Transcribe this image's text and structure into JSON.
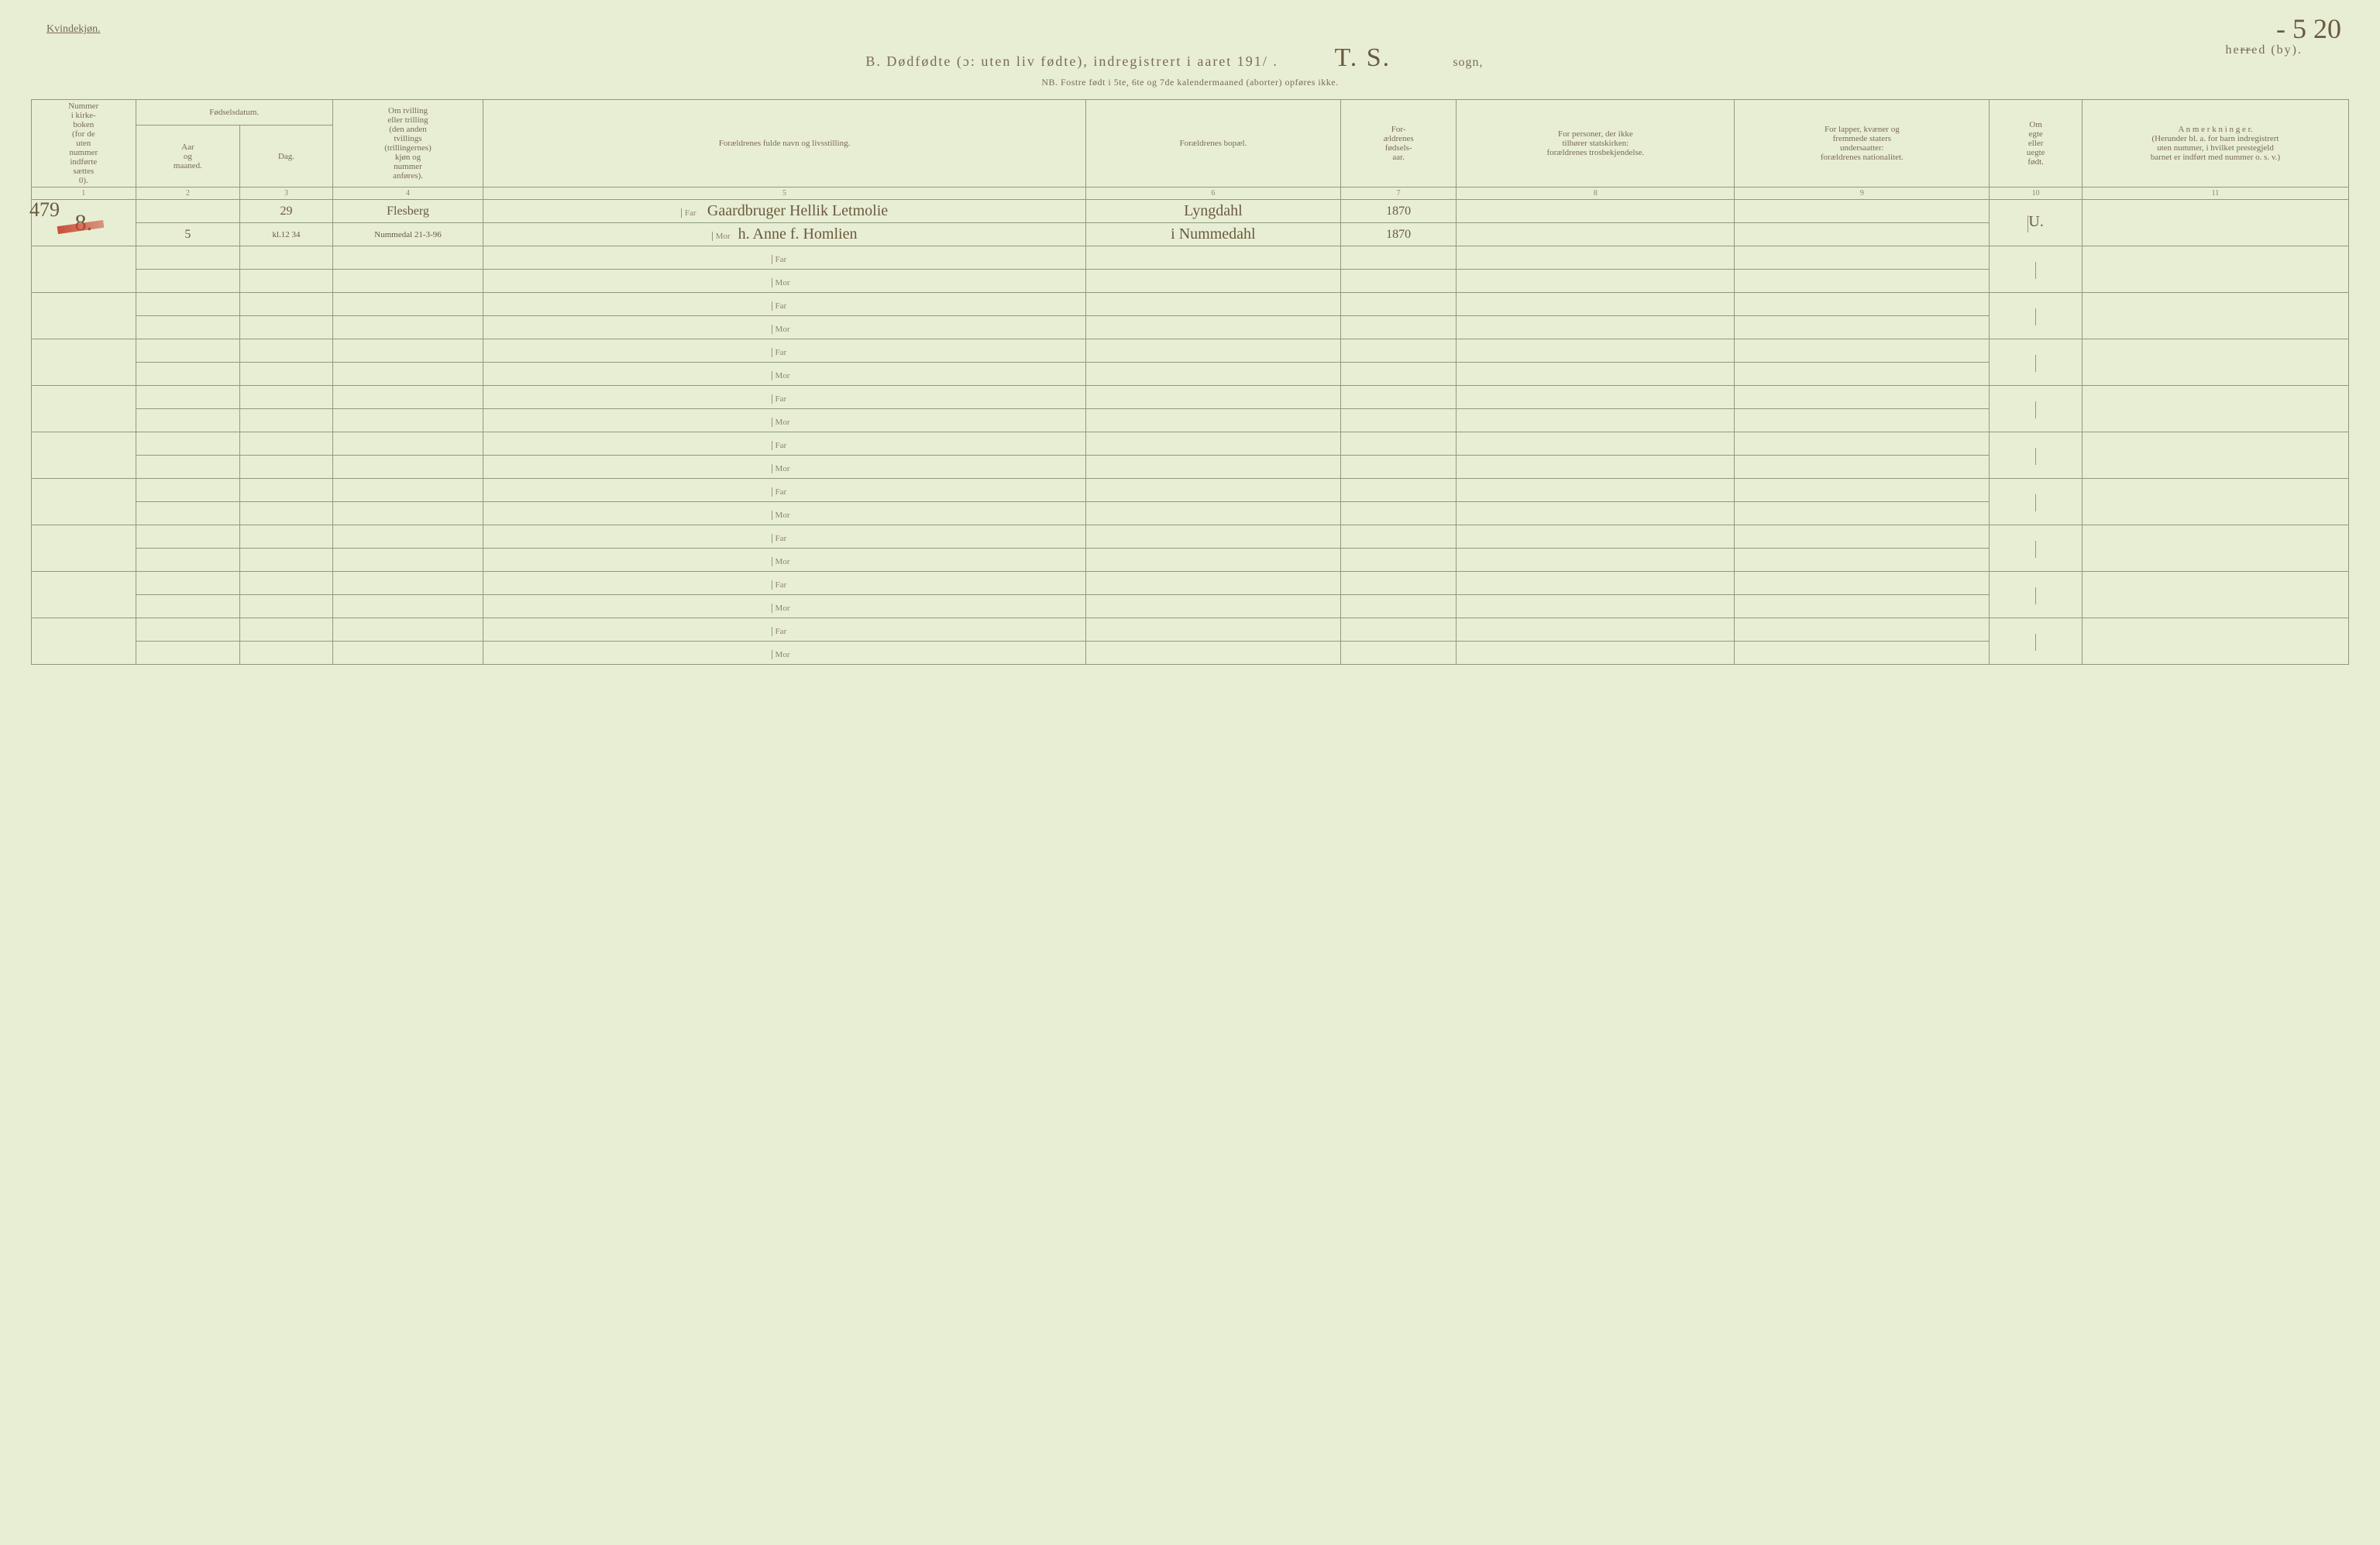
{
  "header": {
    "gender_label": "Kvindekjøn.",
    "title_prefix": "B.  Dødfødte (ɔ: uten liv fødte), indregistrert i aaret 191",
    "title_year_slash": "/ .",
    "sogn_hand": "T. S.",
    "sogn_word": "sogn,",
    "herred_label_pre": "he",
    "herred_strike": "rr",
    "herred_label_post": "ed (by).",
    "corner_hand": "- 5 20",
    "subtitle": "NB.  Fostre født i 5te, 6te og 7de kalendermaaned (aborter) opføres ikke."
  },
  "columns": {
    "c1": "Nummer\ni kirke-\nboken\n(for de\nuten\nnummer\nindførte\nsættes\n0).",
    "c2_top": "Fødselsdatum.",
    "c2a": "Aar\nog\nmaaned.",
    "c2b": "Dag.",
    "c4": "Om tvilling\neller trilling\n(den anden\ntvillings\n(trillingernes)\nkjøn og\nnummer\nanføres).",
    "c5": "Forældrenes fulde navn og livsstilling.",
    "c6": "Forældrenes bopæl.",
    "c7": "For-\nældrenes\nfødsels-\naar.",
    "c8": "For personer, der ikke\ntilhører statskirken:\nforældrenes trosbekjendelse.",
    "c9": "For lapper, kvæner og\nfremmede staters\nundersaatter:\nforældrenes nationalitet.",
    "c10": "Om\negte\neller\nuegte\nfødt.",
    "c11": "A n m e r k n i n g e r.\n(Herunder bl. a. for barn indregistrert\nuten nummer, i hvilket prestegjeld\nbarnet er indført med nummer o. s. v.)",
    "nums": [
      "1",
      "2",
      "3",
      "4",
      "5",
      "6",
      "7",
      "8",
      "9",
      "10",
      "11"
    ]
  },
  "labels": {
    "far": "Far",
    "mor": "Mor"
  },
  "margin_ann": "479",
  "entries": [
    {
      "c1": "8.",
      "c2a_far": "",
      "c2b_far": "29",
      "c4_far": "Flesberg",
      "c2a_mor": "5",
      "c2b_mor": "kl.12 34",
      "c4_mor": "Nummedal 21-3-96",
      "far_name": "Gaardbruger Hellik Letmolie",
      "mor_name": "h. Anne f. Homlien",
      "far_bopel": "Lyngdahl",
      "mor_bopel": "i Nummedahl",
      "far_aar": "1870",
      "mor_aar": "1870",
      "c10": "U."
    }
  ],
  "blank_rows": 9,
  "style": {
    "bg": "#e8eed4",
    "line": "#8f9a7a",
    "ink": "#7a6a55",
    "hand": "#6a5a3f",
    "red": "#c83c28",
    "col_widths_pct": [
      4.5,
      4.5,
      4,
      6.5,
      26,
      11,
      5,
      12,
      11,
      4,
      11.5
    ]
  }
}
